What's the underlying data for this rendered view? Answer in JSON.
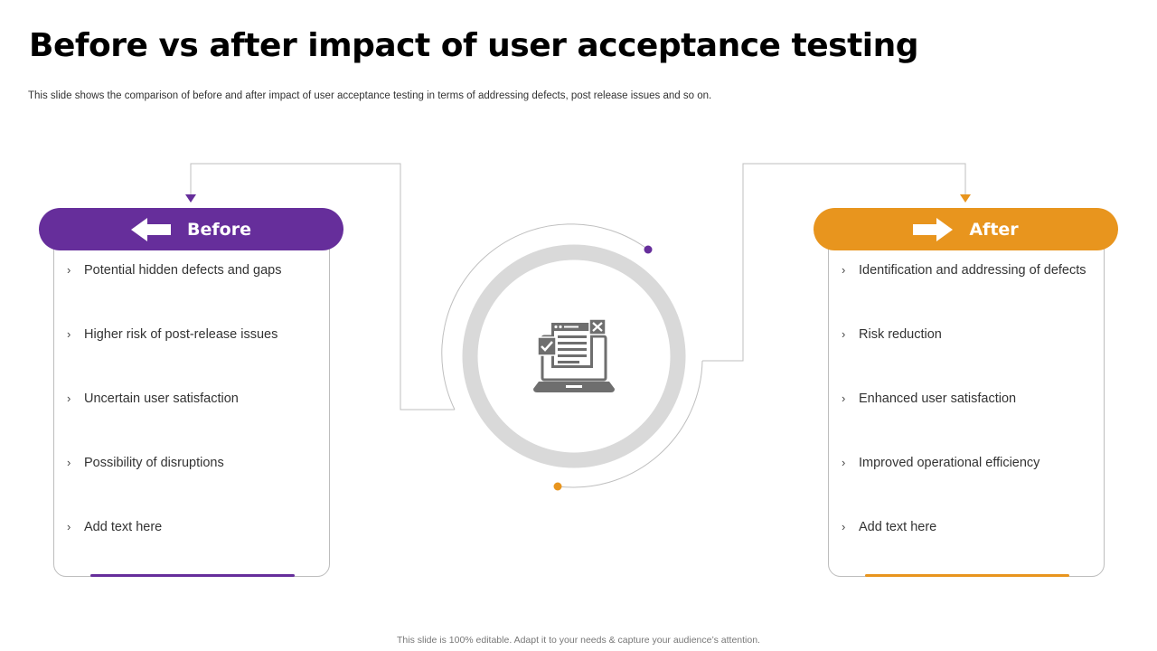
{
  "title": "Before vs after impact of user acceptance testing",
  "subtitle": "This slide shows the comparison of before and after impact of user acceptance testing in terms of addressing defects, post release issues and so on.",
  "footer": "This slide is 100% editable. Adapt it to your needs & capture your audience’s attention.",
  "colors": {
    "before": "#662e9b",
    "after": "#e8951e",
    "ring": "#d9d9d9",
    "line": "#bfbfbf",
    "icon": "#6e6e6e"
  },
  "before": {
    "label": "Before",
    "icon": "arrow-left-icon",
    "items": [
      "Potential hidden defects and gaps",
      "Higher risk of post-release issues",
      "Uncertain user satisfaction",
      "Possibility of disruptions",
      "Add text here"
    ]
  },
  "after": {
    "label": "After",
    "icon": "arrow-right-icon",
    "items": [
      "Identification and addressing of defects",
      "Risk reduction",
      "Enhanced user satisfaction",
      "Improved operational efficiency",
      "Add text here"
    ]
  },
  "center": {
    "icon": "laptop-checklist-icon"
  }
}
